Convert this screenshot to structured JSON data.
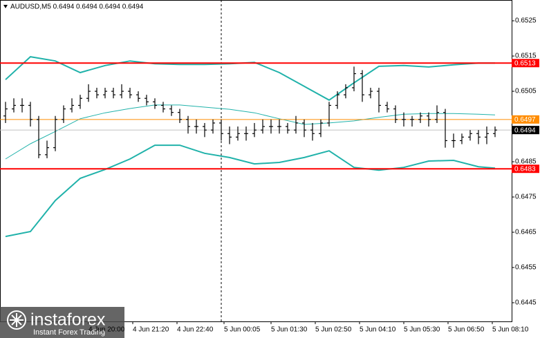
{
  "chart_data": {
    "type": "ohlc",
    "title": "AUDUSD,M5  0.6494 0.6494 0.6494 0.6494",
    "color": "#000000",
    "x": [
      "4 Jun 17:30",
      "4 Jun 17:45",
      "4 Jun 18:00",
      "4 Jun 18:15",
      "4 Jun 18:30",
      "4 Jun 18:45",
      "4 Jun 19:00",
      "4 Jun 19:15",
      "4 Jun 19:30",
      "4 Jun 19:45",
      "4 Jun 20:00",
      "4 Jun 20:15",
      "4 Jun 20:30",
      "4 Jun 20:45",
      "4 Jun 21:00",
      "4 Jun 21:15",
      "4 Jun 21:30",
      "4 Jun 21:45",
      "4 Jun 22:00",
      "4 Jun 22:15",
      "4 Jun 22:30",
      "4 Jun 22:45",
      "4 Jun 23:00",
      "4 Jun 23:15",
      "4 Jun 23:30",
      "4 Jun 23:45",
      "5 Jun 00:00",
      "5 Jun 00:15",
      "5 Jun 00:30",
      "5 Jun 00:45",
      "5 Jun 01:00",
      "5 Jun 01:15",
      "5 Jun 01:30",
      "5 Jun 01:45",
      "5 Jun 02:00",
      "5 Jun 02:15",
      "5 Jun 02:30",
      "5 Jun 02:45",
      "5 Jun 03:00",
      "5 Jun 03:15",
      "5 Jun 03:30",
      "5 Jun 03:45",
      "5 Jun 04:00",
      "5 Jun 04:15",
      "5 Jun 04:30",
      "5 Jun 04:45",
      "5 Jun 05:00",
      "5 Jun 05:15",
      "5 Jun 05:30",
      "5 Jun 05:45",
      "5 Jun 06:00",
      "5 Jun 06:15",
      "5 Jun 06:30",
      "5 Jun 06:45",
      "5 Jun 07:00",
      "5 Jun 07:15",
      "5 Jun 07:30",
      "5 Jun 07:45",
      "5 Jun 08:00",
      "5 Jun 08:15"
    ],
    "open": [
      0.6498,
      0.65,
      0.6501,
      0.6501,
      0.6497,
      0.6487,
      0.6489,
      0.6497,
      0.65,
      0.6501,
      0.6503,
      0.6505,
      0.6504,
      0.6505,
      0.6504,
      0.6505,
      0.6504,
      0.6503,
      0.6502,
      0.6501,
      0.65,
      0.6499,
      0.6497,
      0.6495,
      0.6495,
      0.6494,
      0.6496,
      0.6493,
      0.6492,
      0.6493,
      0.6493,
      0.6494,
      0.6495,
      0.6495,
      0.6495,
      0.6494,
      0.6496,
      0.6494,
      0.6493,
      0.6496,
      0.6501,
      0.6504,
      0.6506,
      0.651,
      0.6504,
      0.6505,
      0.6501,
      0.65,
      0.6497,
      0.6497,
      0.6497,
      0.6498,
      0.6497,
      0.6499,
      0.6491,
      0.6491,
      0.6492,
      0.6493,
      0.6492,
      0.6493
    ],
    "high": [
      0.6502,
      0.6503,
      0.6503,
      0.6502,
      0.6498,
      0.6491,
      0.6498,
      0.6501,
      0.6503,
      0.6504,
      0.6507,
      0.6506,
      0.6506,
      0.6506,
      0.6507,
      0.6506,
      0.6505,
      0.6504,
      0.6503,
      0.6502,
      0.6501,
      0.65,
      0.6498,
      0.6497,
      0.6496,
      0.6497,
      0.6497,
      0.6495,
      0.6495,
      0.6495,
      0.6496,
      0.6497,
      0.6497,
      0.6497,
      0.6496,
      0.6498,
      0.6497,
      0.6496,
      0.6497,
      0.6502,
      0.6505,
      0.6507,
      0.6512,
      0.6511,
      0.6506,
      0.6506,
      0.6502,
      0.6501,
      0.6499,
      0.6498,
      0.6499,
      0.6499,
      0.6501,
      0.65,
      0.6493,
      0.6493,
      0.6494,
      0.6494,
      0.6495,
      0.6495
    ],
    "low": [
      0.6496,
      0.6499,
      0.6499,
      0.6495,
      0.6486,
      0.6486,
      0.6488,
      0.6496,
      0.6499,
      0.65,
      0.6502,
      0.6503,
      0.6503,
      0.6503,
      0.6503,
      0.6503,
      0.6502,
      0.6501,
      0.65,
      0.6499,
      0.6498,
      0.6496,
      0.6493,
      0.6493,
      0.6492,
      0.6493,
      0.6491,
      0.649,
      0.6491,
      0.6491,
      0.6492,
      0.6493,
      0.6493,
      0.6493,
      0.6493,
      0.6493,
      0.6492,
      0.6491,
      0.6492,
      0.6495,
      0.65,
      0.6503,
      0.6505,
      0.6502,
      0.6503,
      0.6499,
      0.6499,
      0.6496,
      0.6495,
      0.6495,
      0.6496,
      0.6495,
      0.6496,
      0.6489,
      0.6489,
      0.649,
      0.6491,
      0.649,
      0.649,
      0.6492
    ],
    "close": [
      0.65,
      0.6501,
      0.6501,
      0.6497,
      0.6487,
      0.6489,
      0.6497,
      0.65,
      0.6501,
      0.6503,
      0.6505,
      0.6504,
      0.6505,
      0.6504,
      0.6505,
      0.6504,
      0.6503,
      0.6502,
      0.6501,
      0.65,
      0.6499,
      0.6497,
      0.6495,
      0.6495,
      0.6494,
      0.6496,
      0.6493,
      0.6492,
      0.6493,
      0.6493,
      0.6494,
      0.6495,
      0.6495,
      0.6495,
      0.6494,
      0.6496,
      0.6494,
      0.6493,
      0.6496,
      0.6501,
      0.6504,
      0.6506,
      0.651,
      0.6504,
      0.6505,
      0.6501,
      0.65,
      0.6497,
      0.6497,
      0.6497,
      0.6498,
      0.6497,
      0.6499,
      0.6491,
      0.6491,
      0.6492,
      0.6493,
      0.6492,
      0.6493,
      0.6494
    ],
    "indicator_x": [
      "4 Jun 17:30",
      "4 Jun 18:15",
      "4 Jun 19:00",
      "4 Jun 19:45",
      "4 Jun 20:30",
      "4 Jun 21:15",
      "4 Jun 22:00",
      "4 Jun 22:45",
      "4 Jun 23:30",
      "5 Jun 00:15",
      "5 Jun 01:00",
      "5 Jun 01:45",
      "5 Jun 02:30",
      "5 Jun 03:15",
      "5 Jun 04:00",
      "5 Jun 04:45",
      "5 Jun 05:30",
      "5 Jun 06:15",
      "5 Jun 07:00",
      "5 Jun 07:45",
      "5 Jun 08:15"
    ],
    "indicators": [
      {
        "color": "#20b2aa",
        "width": 2,
        "values": [
          0.65083,
          0.65148,
          0.65136,
          0.65103,
          0.65123,
          0.65136,
          0.65128,
          0.65126,
          0.65126,
          0.65128,
          0.65132,
          0.65103,
          0.65064,
          0.65025,
          0.65074,
          0.65121,
          0.65123,
          0.65119,
          0.65125,
          0.6513,
          0.6513
        ]
      },
      {
        "color": "#20b2aa",
        "width": 1,
        "values": [
          0.64858,
          0.64901,
          0.64936,
          0.64972,
          0.64989,
          0.65001,
          0.65011,
          0.65011,
          0.65005,
          0.64999,
          0.64989,
          0.64972,
          0.64956,
          0.6496,
          0.64966,
          0.64976,
          0.64985,
          0.64987,
          0.64987,
          0.64985,
          0.64983
        ]
      },
      {
        "color": "#20b2aa",
        "width": 2,
        "values": [
          0.64638,
          0.64652,
          0.6474,
          0.64803,
          0.64828,
          0.64858,
          0.64897,
          0.64897,
          0.64874,
          0.64862,
          0.64844,
          0.64848,
          0.64862,
          0.64881,
          0.64834,
          0.64826,
          0.64834,
          0.64852,
          0.64854,
          0.64836,
          0.64832
        ]
      }
    ],
    "levels": [
      {
        "value": 0.6513,
        "color": "#ff0000"
      },
      {
        "value": 0.6497,
        "color": "#ff8c00"
      },
      {
        "value": 0.6483,
        "color": "#ff0000"
      }
    ],
    "price": {
      "value": 0.6494,
      "color": "#000000"
    },
    "xlim": [
      "4 Jun 17:20",
      "5 Jun 08:45"
    ],
    "xticks": [
      "4 Jun 20:00",
      "4 Jun 21:20",
      "4 Jun 22:40",
      "5 Jun 00:05",
      "5 Jun 01:30",
      "5 Jun 02:50",
      "5 Jun 04:10",
      "5 Jun 05:30",
      "5 Jun 06:50",
      "5 Jun 08:10"
    ],
    "ylim": [
      0.64397,
      0.65309
    ],
    "yticks": [
      0.6525,
      0.6515,
      0.6505,
      0.6485,
      0.6475,
      0.6465,
      0.6455,
      0.6445
    ]
  },
  "watermark": {
    "brand": "instaforex",
    "slogan": "Instant Forex Trading"
  }
}
